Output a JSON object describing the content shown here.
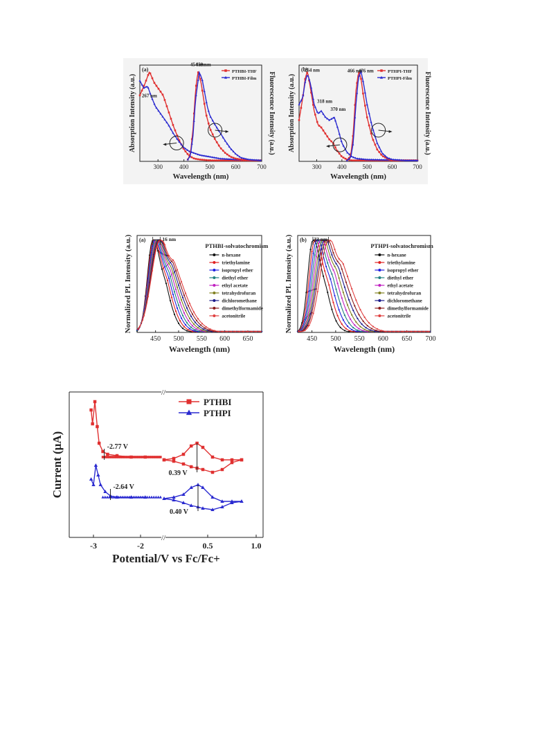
{
  "chart_data": [
    {
      "id": "fig1a",
      "type": "line",
      "panel_label": "(a)",
      "xlabel": "Wavelength (nm)",
      "ylabel": "Absorption Intensity (a.u.)",
      "ylabel_right": "Fluorescence Intensity (a.u.)",
      "xlim": [
        230,
        700
      ],
      "ylim": [
        0,
        1.05
      ],
      "xticks": [
        300,
        400,
        500,
        600,
        700
      ],
      "legend_position": "top-right",
      "annotations": [
        "267 nm",
        "454 nm",
        "459 nm"
      ],
      "series": [
        {
          "name": "PTHBI-THF",
          "color": "#e03030",
          "marker": "square",
          "x": [
            230,
            250,
            267,
            285,
            300,
            320,
            340,
            360,
            380,
            400,
            420,
            440,
            460,
            500,
            700
          ],
          "y": [
            0.72,
            0.85,
            0.98,
            0.86,
            0.8,
            0.72,
            0.55,
            0.38,
            0.24,
            0.13,
            0.06,
            0.03,
            0.02,
            0.01,
            0.01
          ]
        },
        {
          "name": "PTHBI-Film",
          "color": "#2a2ad0",
          "marker": "triangle",
          "x": [
            230,
            245,
            260,
            275,
            290,
            300,
            320,
            340,
            360,
            380,
            400,
            420,
            440,
            460,
            500,
            540,
            600,
            700
          ],
          "y": [
            0.88,
            0.8,
            0.82,
            0.7,
            0.6,
            0.56,
            0.48,
            0.4,
            0.3,
            0.22,
            0.15,
            0.11,
            0.09,
            0.07,
            0.05,
            0.03,
            0.02,
            0.01
          ]
        },
        {
          "name": "PTHBI-THF fluorescence",
          "color": "#e03030",
          "marker": "square",
          "x": [
            415,
            425,
            435,
            445,
            454,
            465,
            475,
            485,
            500,
            520,
            540,
            560,
            580,
            600,
            620,
            650,
            700
          ],
          "y": [
            0.02,
            0.08,
            0.35,
            0.78,
            0.98,
            0.88,
            0.7,
            0.52,
            0.36,
            0.24,
            0.15,
            0.09,
            0.05,
            0.03,
            0.02,
            0.01,
            0.01
          ]
        },
        {
          "name": "PTHBI-Film fluorescence",
          "color": "#2a2ad0",
          "marker": "triangle",
          "x": [
            415,
            425,
            435,
            445,
            459,
            470,
            480,
            490,
            500,
            520,
            540,
            560,
            580,
            600,
            620,
            650,
            700
          ],
          "y": [
            0.02,
            0.06,
            0.28,
            0.68,
            0.97,
            0.9,
            0.75,
            0.6,
            0.5,
            0.4,
            0.31,
            0.22,
            0.14,
            0.08,
            0.04,
            0.02,
            0.01
          ]
        }
      ]
    },
    {
      "id": "fig1b",
      "type": "line",
      "panel_label": "(b)",
      "xlabel": "Wavelength (nm)",
      "ylabel": "Absorption Intensity (a.u.)",
      "ylabel_right": "Fluorescence Intensity (a.u.)",
      "xlim": [
        230,
        700
      ],
      "ylim": [
        0,
        1.05
      ],
      "xticks": [
        300,
        400,
        500,
        600,
        700
      ],
      "legend_position": "top-right",
      "annotations": [
        "264 nm",
        "318 nm",
        "370 nm",
        "466 nm",
        "476 nm"
      ],
      "series": [
        {
          "name": "PTHPI-THF",
          "color": "#e03030",
          "marker": "square",
          "x": [
            230,
            245,
            255,
            264,
            275,
            290,
            305,
            318,
            335,
            350,
            365,
            380,
            400,
            420,
            440,
            460,
            700
          ],
          "y": [
            0.45,
            0.7,
            0.92,
            0.98,
            0.8,
            0.55,
            0.4,
            0.37,
            0.3,
            0.24,
            0.2,
            0.12,
            0.05,
            0.02,
            0.01,
            0.01,
            0.01
          ]
        },
        {
          "name": "PTHPI-Film",
          "color": "#2a2ad0",
          "marker": "triangle",
          "x": [
            230,
            245,
            255,
            264,
            275,
            290,
            305,
            318,
            335,
            350,
            370,
            385,
            400,
            420,
            440,
            460,
            500,
            700
          ],
          "y": [
            0.62,
            0.7,
            0.88,
            0.95,
            0.85,
            0.62,
            0.52,
            0.55,
            0.48,
            0.45,
            0.48,
            0.35,
            0.2,
            0.1,
            0.05,
            0.03,
            0.02,
            0.01
          ]
        },
        {
          "name": "PTHPI-THF fluorescence",
          "color": "#e03030",
          "marker": "square",
          "x": [
            420,
            435,
            445,
            455,
            466,
            475,
            485,
            500,
            520,
            540,
            560,
            580,
            600,
            650,
            700
          ],
          "y": [
            0.01,
            0.06,
            0.3,
            0.75,
            0.98,
            0.92,
            0.72,
            0.48,
            0.26,
            0.13,
            0.06,
            0.03,
            0.01,
            0.01,
            0.01
          ]
        },
        {
          "name": "PTHPI-Film fluorescence",
          "color": "#2a2ad0",
          "marker": "triangle",
          "x": [
            420,
            435,
            445,
            455,
            466,
            476,
            486,
            500,
            520,
            540,
            560,
            580,
            600,
            650,
            700
          ],
          "y": [
            0.01,
            0.04,
            0.2,
            0.6,
            0.92,
            0.98,
            0.85,
            0.62,
            0.38,
            0.2,
            0.09,
            0.04,
            0.02,
            0.01,
            0.01
          ]
        }
      ]
    },
    {
      "id": "fig2a",
      "type": "line",
      "panel_label": "(a)",
      "title": "PTHBI-solvatochromism",
      "xlabel": "Wavelength (nm)",
      "ylabel": "Normalized PL Intensity (a.u.)",
      "xlim": [
        410,
        680
      ],
      "ylim": [
        0,
        1.05
      ],
      "xticks": [
        450,
        500,
        550,
        600,
        650
      ],
      "shift_annotation": "16 nm",
      "legend_position": "right",
      "peak_range": [
        444,
        460
      ],
      "solvents": [
        "n-hexane",
        "triethylamine",
        "isopropyl ether",
        "diethyl ether",
        "ethyl acetate",
        "tetrahydrofuran",
        "dichloromethane",
        "dimethylformamide",
        "acetonitrile"
      ],
      "colors": [
        "#111111",
        "#e02020",
        "#2020e0",
        "#208080",
        "#c020c0",
        "#808020",
        "#1a1a8a",
        "#8a1a1a",
        "#e04040"
      ],
      "peaks": [
        444,
        446,
        448,
        450,
        452,
        454,
        456,
        458,
        460
      ],
      "widths": [
        26,
        28,
        30,
        32,
        34,
        36,
        38,
        40,
        42
      ]
    },
    {
      "id": "fig2b",
      "type": "line",
      "panel_label": "(b)",
      "title": "PTHPI-solvatochromism",
      "xlabel": "Wavelength (nm)",
      "ylabel": "Normalized PL Intensity (a.u.)",
      "xlim": [
        420,
        700
      ],
      "ylim": [
        0,
        1.05
      ],
      "xticks": [
        450,
        500,
        550,
        600,
        650,
        700
      ],
      "shift_annotation": "33 nm",
      "legend_position": "right",
      "peak_range": [
        452,
        485
      ],
      "solvents": [
        "n-hexane",
        "triethylamine",
        "isopropyl ether",
        "diethyl ether",
        "ethyl acetate",
        "tetrahydrofuran",
        "dichloromethane",
        "dimethylformamide",
        "acetonitrile"
      ],
      "colors": [
        "#111111",
        "#e02020",
        "#2020e0",
        "#208080",
        "#c020c0",
        "#808020",
        "#1a1a8a",
        "#8a1a1a",
        "#e04040"
      ],
      "peaks": [
        452,
        456,
        460,
        464,
        468,
        472,
        476,
        480,
        485
      ],
      "widths": [
        24,
        26,
        28,
        30,
        32,
        34,
        36,
        38,
        40
      ]
    },
    {
      "id": "fig3",
      "type": "line",
      "xlabel": "Potential/V vs Fc/Fc+",
      "ylabel": "Current (μA)",
      "xticks_left": [
        "-3",
        "-2"
      ],
      "xticks_right": [
        "0.5",
        "1.0"
      ],
      "x_break": true,
      "legend_position": "top-right",
      "series": [
        {
          "name": "PTHBI",
          "color": "#e03030",
          "marker": "square",
          "reduction_label": "-2.77 V",
          "oxidation_label": "0.39 V",
          "reduction_x": [
            -3.05,
            -3.02,
            -2.97,
            -2.92,
            -2.88,
            -2.8,
            -2.7,
            -2.5,
            -2.2,
            -1.9,
            -1.55
          ],
          "reduction_y": [
            0.92,
            0.82,
            0.98,
            0.8,
            0.68,
            0.62,
            0.6,
            0.59,
            0.58,
            0.58,
            0.58
          ],
          "oxidation_x": [
            0.05,
            0.15,
            0.25,
            0.33,
            0.39,
            0.45,
            0.55,
            0.65,
            0.75,
            0.85
          ],
          "oxidation_y_forward": [
            0.56,
            0.57,
            0.6,
            0.66,
            0.68,
            0.65,
            0.58,
            0.56,
            0.56,
            0.56
          ],
          "oxidation_y_reverse": [
            0.56,
            0.55,
            0.53,
            0.51,
            0.5,
            0.49,
            0.47,
            0.49,
            0.54,
            0.56
          ]
        },
        {
          "name": "PTHPI",
          "color": "#2a2ad0",
          "marker": "triangle",
          "reduction_label": "-2.64 V",
          "oxidation_label": "0.40 V",
          "reduction_x": [
            -3.05,
            -3.0,
            -2.95,
            -2.9,
            -2.85,
            -2.75,
            -2.64,
            -2.5,
            -2.2,
            -1.9,
            -1.55
          ],
          "reduction_y": [
            0.42,
            0.38,
            0.52,
            0.45,
            0.38,
            0.33,
            0.3,
            0.29,
            0.29,
            0.29,
            0.29
          ],
          "oxidation_x": [
            0.05,
            0.15,
            0.25,
            0.33,
            0.4,
            0.45,
            0.55,
            0.65,
            0.75,
            0.85
          ],
          "oxidation_y_forward": [
            0.28,
            0.29,
            0.31,
            0.36,
            0.38,
            0.36,
            0.29,
            0.26,
            0.26,
            0.26
          ],
          "oxidation_y_reverse": [
            0.28,
            0.27,
            0.25,
            0.23,
            0.22,
            0.21,
            0.2,
            0.22,
            0.25,
            0.26
          ]
        }
      ]
    }
  ]
}
